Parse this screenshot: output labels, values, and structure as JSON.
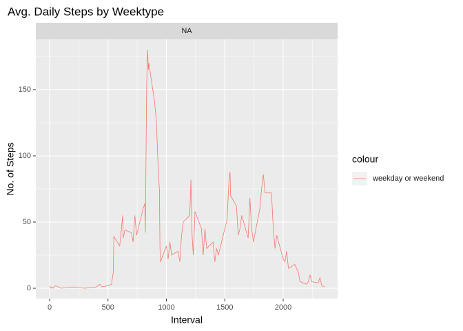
{
  "chart_data": {
    "type": "line",
    "title": "Avg. Daily Steps by Weektype",
    "facet_label": "NA",
    "x_label": "Interval",
    "y_label": "No. of Steps",
    "legend_title": "colour",
    "legend": "right",
    "grid": true,
    "xlim": [
      -118,
      2466
    ],
    "ylim": [
      -7.8,
      188
    ],
    "xticks": [
      0,
      500,
      1000,
      1500,
      2000
    ],
    "x_minor_ticks": [
      250,
      750,
      1250,
      1750,
      2250
    ],
    "yticks": [
      0,
      50,
      100,
      150
    ],
    "y_minor_ticks": [
      25,
      75,
      125,
      175
    ],
    "x": [
      0,
      10,
      20,
      30,
      50,
      100,
      200,
      300,
      400,
      430,
      450,
      500,
      530,
      545,
      550,
      600,
      615,
      625,
      630,
      645,
      700,
      715,
      730,
      745,
      800,
      815,
      820,
      830,
      835,
      840,
      845,
      850,
      900,
      915,
      930,
      940,
      945,
      950,
      1000,
      1015,
      1030,
      1045,
      1100,
      1115,
      1130,
      1145,
      1200,
      1210,
      1215,
      1220,
      1230,
      1245,
      1300,
      1315,
      1330,
      1345,
      1400,
      1415,
      1430,
      1445,
      1500,
      1520,
      1535,
      1545,
      1550,
      1600,
      1615,
      1630,
      1645,
      1700,
      1715,
      1730,
      1745,
      1800,
      1815,
      1830,
      1845,
      1900,
      1915,
      1930,
      1945,
      2000,
      2015,
      2030,
      2045,
      2100,
      2130,
      2145,
      2200,
      2215,
      2230,
      2245,
      2300,
      2315,
      2330,
      2355
    ],
    "series": [
      {
        "name": "weekday or weekend",
        "color": "#F8766D",
        "values": [
          2,
          0,
          1,
          0,
          2,
          0,
          1,
          0,
          1,
          3,
          1,
          2,
          3,
          12,
          39,
          32,
          45,
          55,
          38,
          44,
          42,
          35,
          55,
          40,
          60,
          64,
          42,
          145,
          170,
          180,
          165,
          170,
          140,
          125,
          90,
          75,
          30,
          20,
          32,
          22,
          35,
          25,
          28,
          20,
          40,
          50,
          55,
          82,
          60,
          40,
          25,
          58,
          45,
          25,
          45,
          30,
          35,
          20,
          30,
          25,
          45,
          52,
          80,
          88,
          70,
          62,
          40,
          45,
          55,
          38,
          68,
          45,
          35,
          60,
          75,
          86,
          72,
          72,
          45,
          30,
          40,
          22,
          20,
          28,
          15,
          18,
          12,
          5,
          3,
          5,
          10,
          5,
          4,
          8,
          2,
          1
        ]
      }
    ]
  }
}
